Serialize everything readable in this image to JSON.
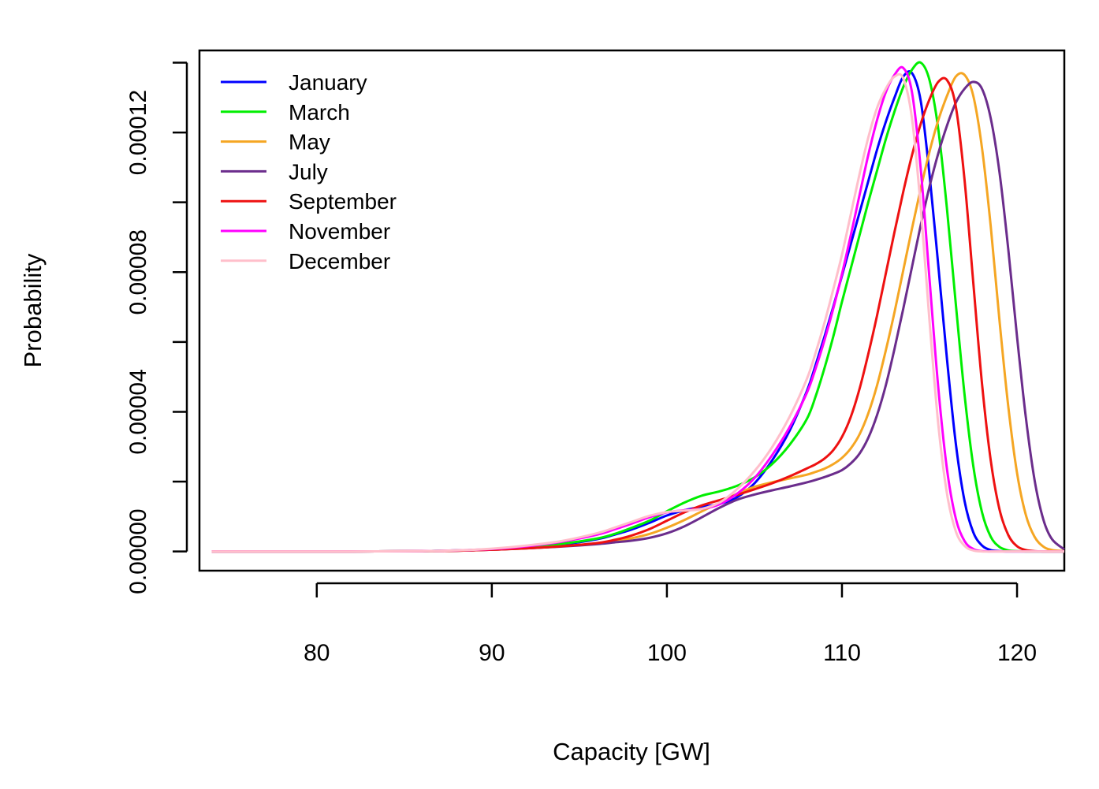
{
  "chart_data": {
    "type": "line",
    "title": "",
    "xlabel": "Capacity [GW]",
    "ylabel": "Probability",
    "xlim": [
      73.3,
      122.7
    ],
    "ylim": [
      -5.5e-06,
      0.0001435
    ],
    "x_ticks": [
      80,
      90,
      100,
      110,
      120
    ],
    "x_tick_labels": [
      "80",
      "90",
      "100",
      "110",
      "120"
    ],
    "y_ticks": [
      0,
      2e-05,
      4e-05,
      6e-05,
      8e-05,
      0.0001,
      0.00012,
      0.00014
    ],
    "y_tick_labels": [
      "0.00000",
      "",
      "0.00004",
      "",
      "0.00008",
      "",
      "0.00012",
      ""
    ],
    "grid": false,
    "legend_position": "top-left",
    "x": [
      74,
      78,
      82,
      86,
      88,
      90,
      92,
      94,
      96,
      97,
      98,
      99,
      100,
      101,
      102,
      103,
      104,
      105,
      106,
      107,
      108,
      108.5,
      109,
      109.5,
      110,
      110.5,
      111,
      111.5,
      112,
      112.5,
      113,
      113.5,
      114,
      114.5,
      115,
      115.5,
      116,
      116.5,
      117,
      117.5,
      118,
      118.5,
      119,
      119.5,
      120,
      120.5,
      121,
      121.5,
      122,
      122.7
    ],
    "series": [
      {
        "name": "January",
        "color": "#0000ff",
        "values": [
          0,
          0,
          0,
          1e-07,
          3e-07,
          6e-07,
          1.2e-06,
          2e-06,
          3.5e-06,
          4.8e-06,
          6.3e-06,
          8.2e-06,
          1.03e-05,
          1.18e-05,
          1.28e-05,
          1.36e-05,
          1.55e-05,
          1.95e-05,
          2.6e-05,
          3.45e-05,
          4.6e-05,
          5.35e-05,
          6.15e-05,
          7e-05,
          7.9e-05,
          8.8e-05,
          9.7e-05,
          0.000106,
          0.000115,
          0.000123,
          0.00013,
          0.000136,
          0.000137,
          0.000129,
          0.000108,
          8.2e-05,
          5.5e-05,
          3.1e-05,
          1.45e-05,
          5.5e-06,
          1.7e-06,
          4e-07,
          1e-07,
          0,
          0,
          0,
          0,
          0,
          0,
          0
        ]
      },
      {
        "name": "March",
        "color": "#00ee00",
        "values": [
          0,
          0,
          0,
          1e-07,
          3e-07,
          6e-07,
          1.3e-06,
          2.2e-06,
          3.7e-06,
          5e-06,
          6.8e-06,
          8.8e-06,
          1.15e-05,
          1.4e-05,
          1.6e-05,
          1.72e-05,
          1.88e-05,
          2.12e-05,
          2.5e-05,
          3.05e-05,
          3.8e-05,
          4.45e-05,
          5.25e-05,
          6.15e-05,
          7.15e-05,
          8.1e-05,
          9.05e-05,
          0.0001,
          0.000109,
          0.000118,
          0.000126,
          0.000133,
          0.000138,
          0.00014,
          0.000135,
          0.000121,
          9.8e-05,
          7.1e-05,
          4.5e-05,
          2.45e-05,
          1.12e-05,
          4.2e-06,
          1.3e-06,
          3e-07,
          1e-07,
          0,
          0,
          0,
          0,
          0
        ]
      },
      {
        "name": "May",
        "color": "#f5a623",
        "values": [
          0,
          0,
          0,
          1e-07,
          2e-07,
          5e-07,
          9e-07,
          1.5e-06,
          2.3e-06,
          3e-06,
          3.8e-06,
          5e-06,
          6.8e-06,
          9e-06,
          1.15e-05,
          1.4e-05,
          1.65e-05,
          1.85e-05,
          1.98e-05,
          2.09e-05,
          2.2e-05,
          2.28e-05,
          2.37e-05,
          2.5e-05,
          2.68e-05,
          2.95e-05,
          3.35e-05,
          3.95e-05,
          4.75e-05,
          5.75e-05,
          6.85e-05,
          8.05e-05,
          9.25e-05,
          0.000104,
          0.0001145,
          0.0001235,
          0.0001305,
          0.000136,
          0.0001365,
          0.0001305,
          0.0001155,
          9.3e-05,
          6.6e-05,
          4.15e-05,
          2.25e-05,
          1.05e-05,
          4.2e-06,
          1.4e-06,
          4e-07,
          1e-07
        ]
      },
      {
        "name": "July",
        "color": "#6b2d8c",
        "values": [
          0,
          0,
          0,
          1e-07,
          2e-07,
          5e-07,
          9e-07,
          1.4e-06,
          2.1e-06,
          2.6e-06,
          3.1e-06,
          3.9e-06,
          5.2e-06,
          7.2e-06,
          9.8e-06,
          1.25e-05,
          1.48e-05,
          1.63e-05,
          1.75e-05,
          1.86e-05,
          1.98e-05,
          2.05e-05,
          2.13e-05,
          2.22e-05,
          2.33e-05,
          2.52e-05,
          2.8e-05,
          3.25e-05,
          3.9e-05,
          4.75e-05,
          5.8e-05,
          6.95e-05,
          8.15e-05,
          9.35e-05,
          0.0001045,
          0.000114,
          0.000122,
          0.0001285,
          0.0001325,
          0.0001345,
          0.0001325,
          0.000124,
          0.0001085,
          8.65e-05,
          6.15e-05,
          3.85e-05,
          2.05e-05,
          9.2e-06,
          3.5e-06,
          6e-07
        ]
      },
      {
        "name": "September",
        "color": "#ee1111",
        "values": [
          0,
          0,
          0,
          1e-07,
          2e-07,
          5e-07,
          9e-07,
          1.5e-06,
          2.4e-06,
          3.3e-06,
          4.6e-06,
          6.4e-06,
          8.8e-06,
          1.12e-05,
          1.32e-05,
          1.47e-05,
          1.62e-05,
          1.78e-05,
          1.95e-05,
          2.15e-05,
          2.38e-05,
          2.5e-05,
          2.66e-05,
          2.9e-05,
          3.28e-05,
          3.85e-05,
          4.65e-05,
          5.65e-05,
          6.75e-05,
          7.95e-05,
          9.15e-05,
          0.000103,
          0.0001135,
          0.0001225,
          0.0001295,
          0.0001345,
          0.000135,
          0.0001275,
          0.0001065,
          7.7e-05,
          4.8e-05,
          2.6e-05,
          1.2e-05,
          4.7e-06,
          1.5e-06,
          4e-07,
          1e-07,
          0,
          0,
          0
        ]
      },
      {
        "name": "November",
        "color": "#ff00ff",
        "values": [
          0,
          0,
          0,
          1e-07,
          3e-07,
          7e-07,
          1.5e-06,
          2.8e-06,
          4.8e-06,
          6.3e-06,
          8e-06,
          9.8e-06,
          1.12e-05,
          1.18e-05,
          1.22e-05,
          1.35e-05,
          1.65e-05,
          2.1e-05,
          2.75e-05,
          3.55e-05,
          4.55e-05,
          5.25e-05,
          6.05e-05,
          6.95e-05,
          7.95e-05,
          9.05e-05,
          0.000102,
          0.0001135,
          0.0001235,
          0.0001315,
          0.0001365,
          0.0001385,
          0.0001315,
          0.0001095,
          7.8e-05,
          4.7e-05,
          2.35e-05,
          9.5e-06,
          3e-06,
          7e-07,
          1e-07,
          0,
          0,
          0,
          0,
          0,
          0,
          0,
          0,
          0
        ]
      },
      {
        "name": "December",
        "color": "#ffbfcb",
        "values": [
          0,
          0,
          0,
          1e-07,
          3e-07,
          8e-07,
          1.7e-06,
          3e-06,
          5.2e-06,
          6.8e-06,
          8.5e-06,
          1.02e-05,
          1.13e-05,
          1.17e-05,
          1.22e-05,
          1.4e-05,
          1.78e-05,
          2.3e-05,
          2.98e-05,
          3.85e-05,
          4.95e-05,
          5.7e-05,
          6.55e-05,
          7.5e-05,
          8.5e-05,
          9.65e-05,
          0.000108,
          0.0001185,
          0.000127,
          0.0001325,
          0.000136,
          0.0001355,
          0.000124,
          9.85e-05,
          6.6e-05,
          3.65e-05,
          1.65e-05,
          5.8e-06,
          1.6e-06,
          3e-07,
          0,
          0,
          0,
          0,
          0,
          0,
          0,
          0,
          0,
          0
        ]
      }
    ]
  }
}
